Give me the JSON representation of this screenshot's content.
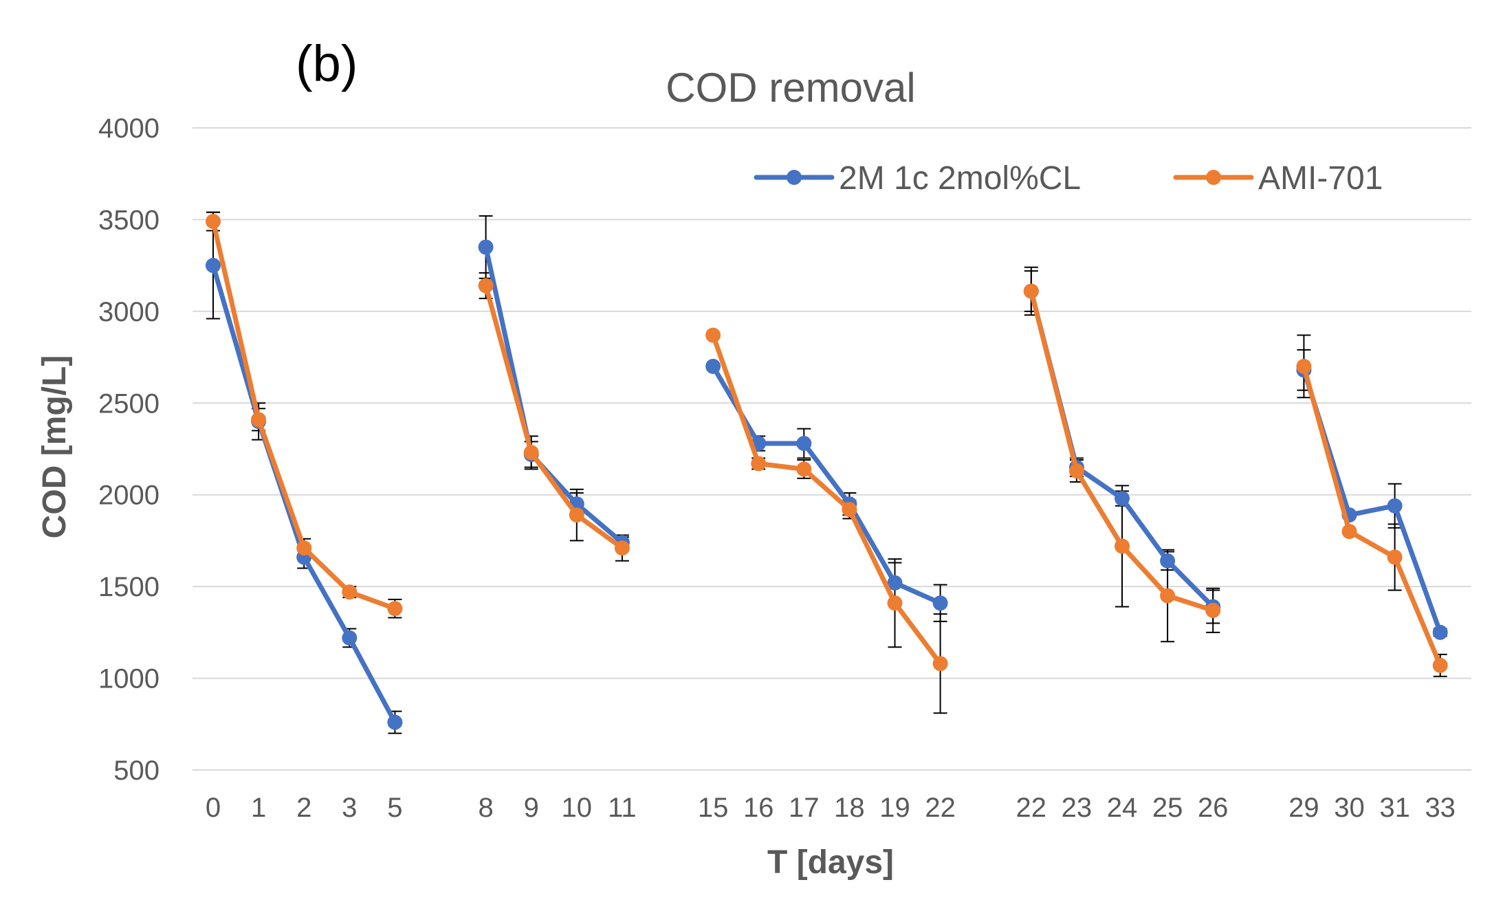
{
  "chart_data": {
    "type": "line",
    "panel_label": "(b)",
    "title": "COD removal",
    "xlabel": "T [days]",
    "ylabel": "COD [mg/L]",
    "ylim": [
      500,
      4000
    ],
    "yticks": [
      500,
      1000,
      1500,
      2000,
      2500,
      3000,
      3500,
      4000
    ],
    "grid": true,
    "legend_position": "top-right",
    "categories": [
      "0",
      "1",
      "2",
      "3",
      "5",
      "",
      "8",
      "9",
      "10",
      "11",
      "",
      "15",
      "16",
      "17",
      "18",
      "19",
      "22",
      "",
      "22",
      "23",
      "24",
      "25",
      "26",
      "",
      "29",
      "30",
      "31",
      "33"
    ],
    "segments": [
      [
        0,
        4
      ],
      [
        6,
        9
      ],
      [
        11,
        16
      ],
      [
        18,
        22
      ],
      [
        24,
        27
      ]
    ],
    "series": [
      {
        "name": "2M 1c 2mol%CL",
        "color": "#4472c4",
        "values": [
          3250,
          2400,
          1660,
          1220,
          760,
          null,
          3350,
          2220,
          1950,
          1740,
          null,
          2700,
          2280,
          2280,
          1950,
          1520,
          1410,
          null,
          3110,
          2150,
          1980,
          1640,
          1390,
          null,
          2680,
          1890,
          1940,
          1250
        ],
        "errors": [
          290,
          100,
          60,
          50,
          60,
          null,
          170,
          70,
          60,
          30,
          null,
          0,
          40,
          80,
          60,
          110,
          100,
          null,
          110,
          50,
          40,
          50,
          90,
          null,
          110,
          0,
          120,
          20
        ]
      },
      {
        "name": "AMI-701",
        "color": "#ed7d31",
        "values": [
          3490,
          2410,
          1710,
          1470,
          1380,
          null,
          3140,
          2230,
          1890,
          1710,
          null,
          2870,
          2170,
          2140,
          1920,
          1410,
          1080,
          null,
          3110,
          2130,
          1720,
          1450,
          1370,
          null,
          2700,
          1800,
          1660,
          1070
        ],
        "errors": [
          50,
          60,
          50,
          30,
          50,
          null,
          70,
          90,
          140,
          70,
          null,
          0,
          30,
          50,
          50,
          240,
          270,
          null,
          130,
          60,
          330,
          250,
          120,
          null,
          170,
          0,
          180,
          60
        ]
      }
    ]
  }
}
